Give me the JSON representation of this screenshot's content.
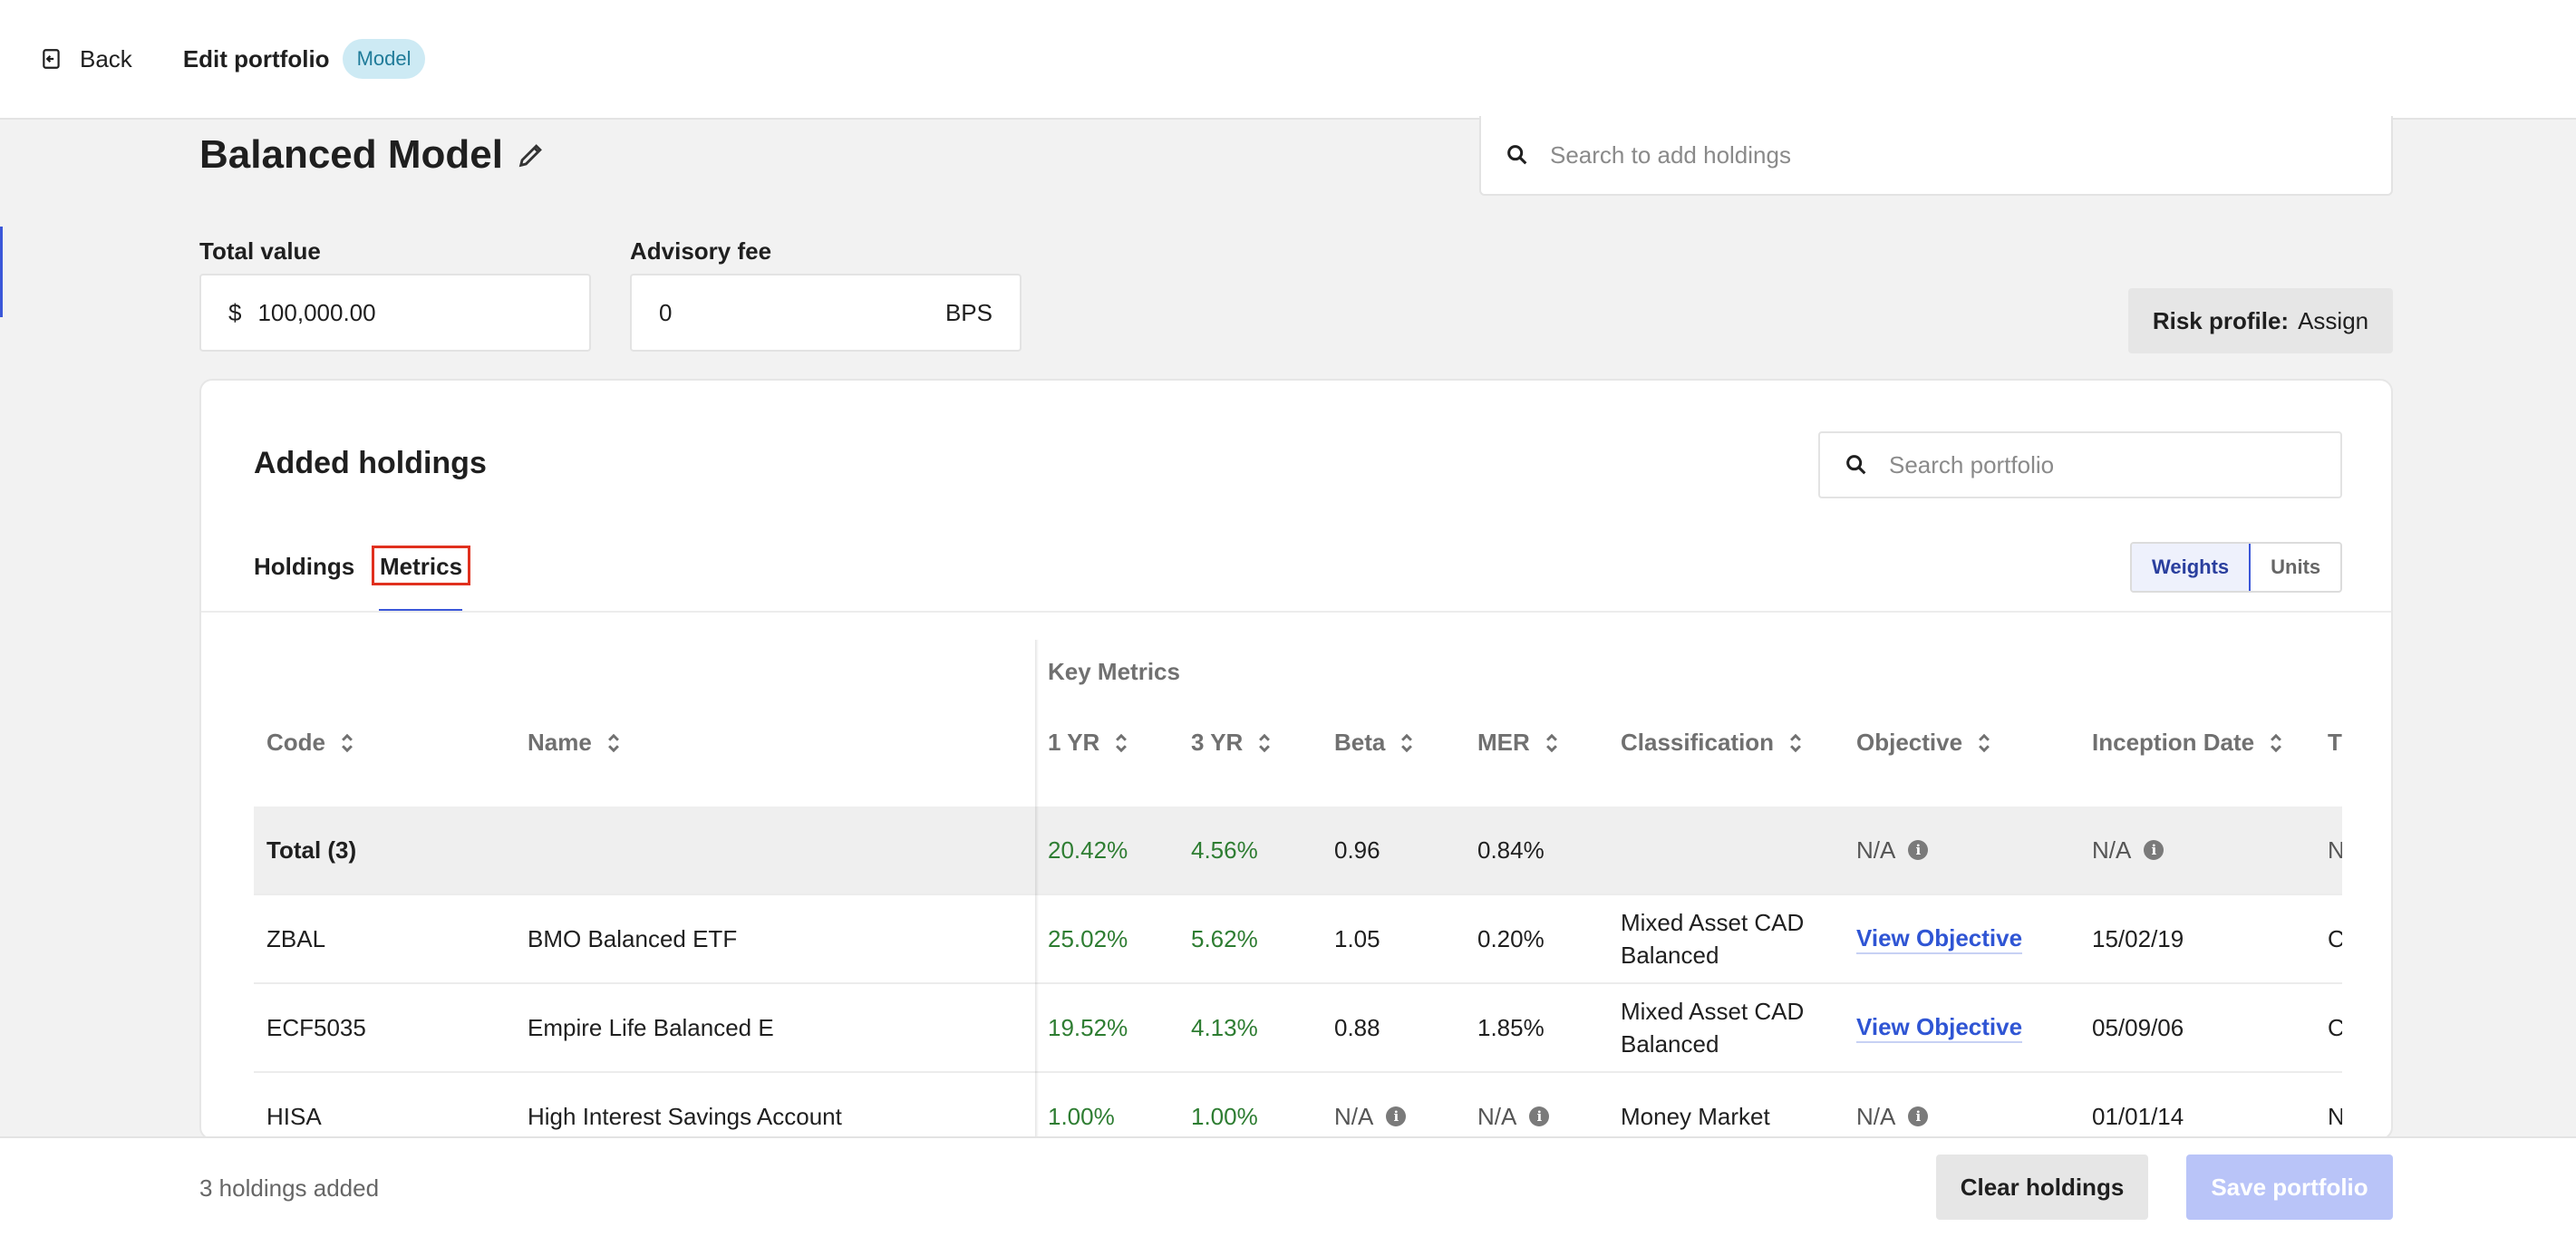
{
  "header": {
    "back_label": "Back",
    "title": "Edit portfolio",
    "badge": "Model"
  },
  "portfolio": {
    "name": "Balanced Model",
    "search_holdings_placeholder": "Search to add holdings",
    "total_value_label": "Total value",
    "total_value_prefix": "$",
    "total_value": "100,000.00",
    "advisory_fee_label": "Advisory fee",
    "advisory_fee": "0",
    "advisory_fee_unit": "BPS",
    "risk_profile_label": "Risk profile:",
    "risk_profile_value": "Assign"
  },
  "holdings_card": {
    "title": "Added holdings",
    "search_placeholder": "Search portfolio",
    "tabs": [
      "Holdings",
      "Metrics"
    ],
    "active_tab": "Metrics",
    "toggle": [
      "Weights",
      "Units"
    ],
    "active_toggle": "Weights",
    "group_label": "Key Metrics",
    "columns": [
      "Code",
      "Name",
      "1 YR",
      "3 YR",
      "Beta",
      "MER",
      "Classification",
      "Objective",
      "Inception Date",
      "T"
    ],
    "rows": [
      {
        "code": "Total (3)",
        "name": "",
        "yr1": "20.42%",
        "yr3": "4.56%",
        "beta": "0.96",
        "mer": "0.84%",
        "classification": "",
        "objective": "N/A",
        "inception": "N/A",
        "extra": "N"
      },
      {
        "code": "ZBAL",
        "name": "BMO Balanced ETF",
        "yr1": "25.02%",
        "yr3": "5.62%",
        "beta": "1.05",
        "mer": "0.20%",
        "classification": "Mixed Asset CAD Balanced",
        "objective": "View Objective",
        "inception": "15/02/19",
        "extra": "C"
      },
      {
        "code": "ECF5035",
        "name": "Empire Life Balanced E",
        "yr1": "19.52%",
        "yr3": "4.13%",
        "beta": "0.88",
        "mer": "1.85%",
        "classification": "Mixed Asset CAD Balanced",
        "objective": "View Objective",
        "inception": "05/09/06",
        "extra": "C"
      },
      {
        "code": "HISA",
        "name": "High Interest Savings Account",
        "yr1": "1.00%",
        "yr3": "1.00%",
        "beta": "N/A",
        "mer": "N/A",
        "classification": "Money Market",
        "objective": "N/A",
        "inception": "01/01/14",
        "extra": "N"
      }
    ]
  },
  "footer": {
    "count_text": "3 holdings added",
    "clear_label": "Clear holdings",
    "save_label": "Save portfolio"
  },
  "colors": {
    "accent": "#3b57d9",
    "positive": "#2e7d32",
    "link": "#2f55d4",
    "highlight_box": "#e0301e",
    "save_disabled": "#b9c4f8"
  },
  "icons": {
    "back": "exit-left-icon",
    "edit": "pencil-icon",
    "search": "search-icon",
    "sort": "sort-updown-icon",
    "info": "info-icon"
  }
}
